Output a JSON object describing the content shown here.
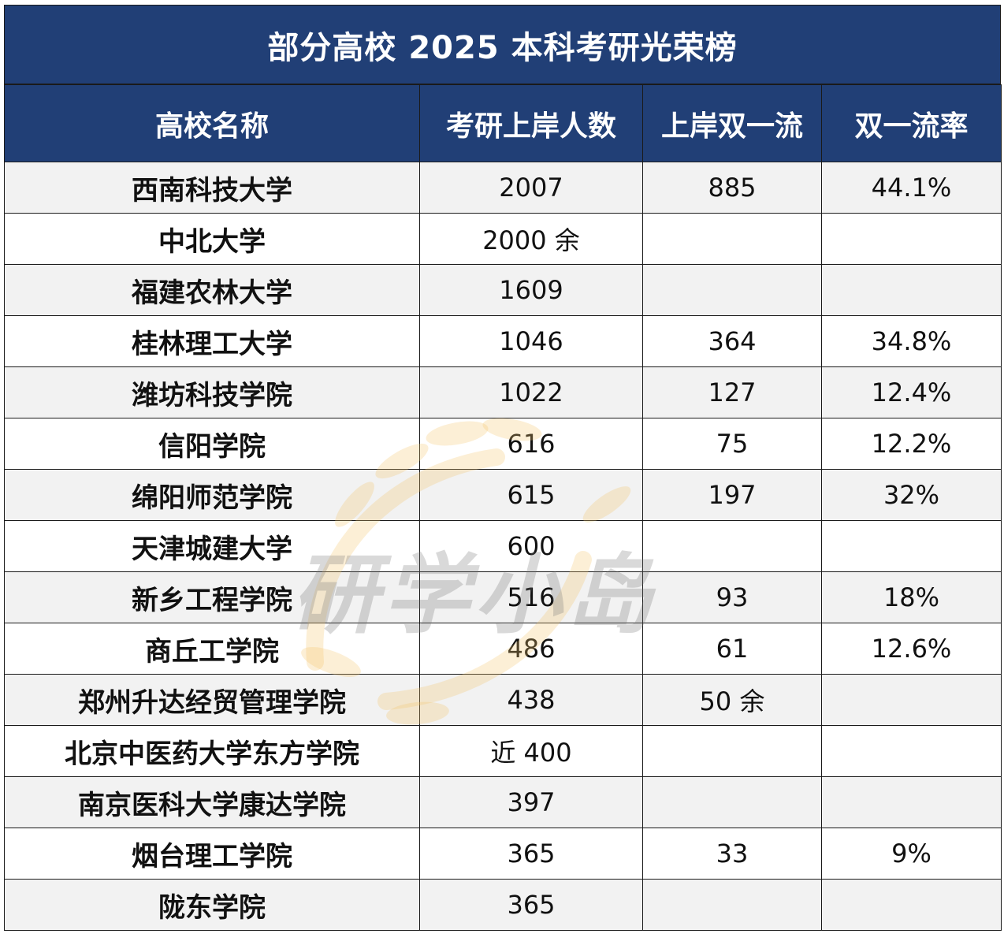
{
  "title": "部分高校 2025 本科考研光荣榜",
  "headers": [
    "高校名称",
    "考研上岸人数",
    "上岸双一流",
    "双一流率"
  ],
  "rows": [
    {
      "name": "西南科技大学",
      "count": "2007",
      "double": "885",
      "rate": "44.1%"
    },
    {
      "name": "中北大学",
      "count": "2000 余",
      "double": "",
      "rate": ""
    },
    {
      "name": "福建农林大学",
      "count": "1609",
      "double": "",
      "rate": ""
    },
    {
      "name": "桂林理工大学",
      "count": "1046",
      "double": "364",
      "rate": "34.8%"
    },
    {
      "name": "潍坊科技学院",
      "count": "1022",
      "double": "127",
      "rate": "12.4%"
    },
    {
      "name": "信阳学院",
      "count": "616",
      "double": "75",
      "rate": "12.2%"
    },
    {
      "name": "绵阳师范学院",
      "count": "615",
      "double": "197",
      "rate": "32%"
    },
    {
      "name": "天津城建大学",
      "count": "600",
      "double": "",
      "rate": ""
    },
    {
      "name": "新乡工程学院",
      "count": "516",
      "double": "93",
      "rate": "18%"
    },
    {
      "name": "商丘工学院",
      "count": "486",
      "double": "61",
      "rate": "12.6%"
    },
    {
      "name": "郑州升达经贸管理学院",
      "count": "438",
      "double": "50 余",
      "rate": ""
    },
    {
      "name": "北京中医药大学东方学院",
      "count": "近 400",
      "double": "",
      "rate": ""
    },
    {
      "name": "南京医科大学康达学院",
      "count": "397",
      "double": "",
      "rate": ""
    },
    {
      "name": "烟台理工学院",
      "count": "365",
      "double": "33",
      "rate": "9%"
    },
    {
      "name": "陇东学院",
      "count": "365",
      "double": "",
      "rate": ""
    }
  ],
  "watermark": "研学小岛",
  "colors": {
    "header_bg": "#213f76",
    "header_text": "#ffffff",
    "alt_row": "#f2f2f2",
    "watermark_gold": "#f3c56a"
  }
}
